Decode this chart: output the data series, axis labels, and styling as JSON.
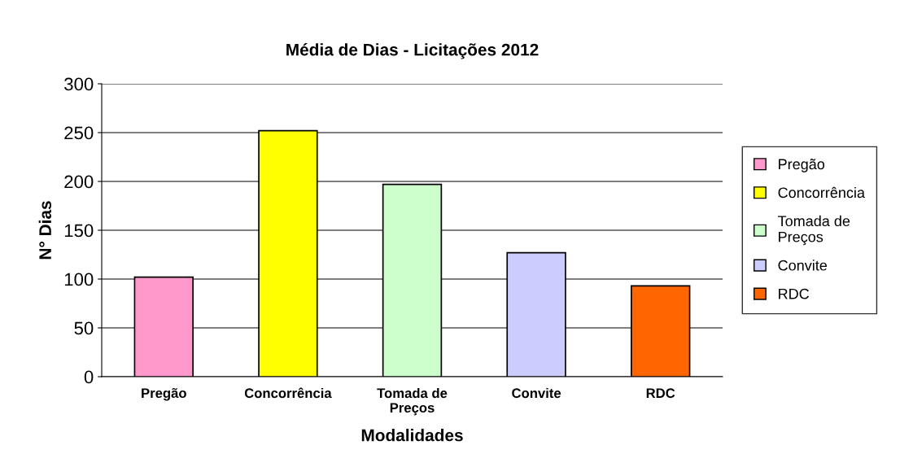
{
  "chart_data": {
    "type": "bar",
    "title": "Média de Dias - Licitações 2012",
    "xlabel": "Modalidades",
    "ylabel": "N° Dias",
    "categories": [
      "Pregão",
      "Concorrência",
      "Tomada de\nPreços",
      "Convite",
      "RDC"
    ],
    "series": [
      {
        "name": "Pregão",
        "color": "#ff99cc",
        "values": [
          102,
          null,
          null,
          null,
          null
        ]
      },
      {
        "name": "Concorrência",
        "color": "#ffff00",
        "values": [
          null,
          252,
          null,
          null,
          null
        ]
      },
      {
        "name": "Tomada de\nPreços",
        "color": "#ccffcc",
        "values": [
          null,
          null,
          197,
          null,
          null
        ]
      },
      {
        "name": "Convite",
        "color": "#ccccff",
        "values": [
          null,
          null,
          null,
          127,
          null
        ]
      },
      {
        "name": "RDC",
        "color": "#ff6600",
        "values": [
          null,
          null,
          null,
          null,
          93
        ]
      }
    ],
    "ylim": [
      0,
      300
    ],
    "yticks": [
      0,
      50,
      100,
      150,
      200,
      250,
      300
    ],
    "grid": "y",
    "legend": "right"
  }
}
